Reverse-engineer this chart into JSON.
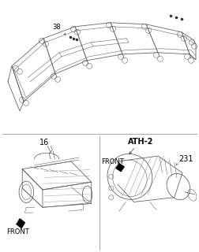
{
  "bg_color": "#ffffff",
  "border_color": "#999999",
  "line_color": "#666666",
  "dark_color": "#333333",
  "text_color": "#000000",
  "label_38": "38",
  "label_16": "16",
  "label_atm2": "ATH-2",
  "label_231": "231",
  "label_front1": "FRONT",
  "label_front2": "FRONT",
  "fig_width": 2.52,
  "fig_height": 3.2,
  "dpi": 100
}
